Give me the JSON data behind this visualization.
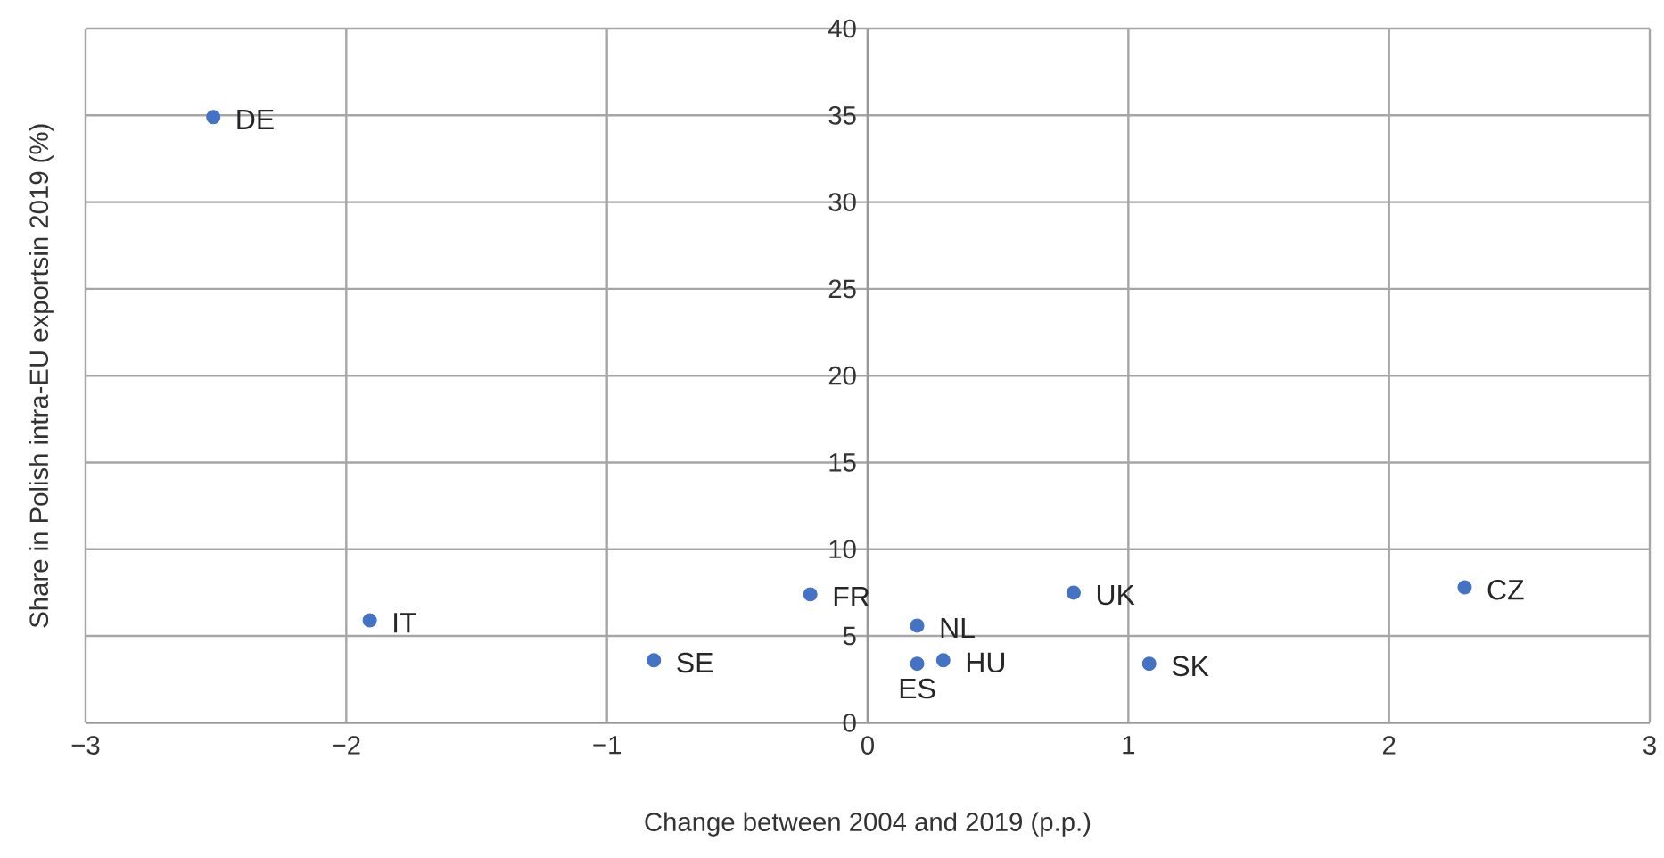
{
  "chart_data": {
    "type": "scatter",
    "xlabel": "Change between 2004 and 2019 (p.p.)",
    "ylabel": "Share in Polish intra-EU exportsin 2019 (%)",
    "x": [
      -2.51,
      -1.91,
      -0.82,
      -0.22,
      0.19,
      0.19,
      0.29,
      0.79,
      1.08,
      2.29
    ],
    "values": [
      34.9,
      5.9,
      3.6,
      7.4,
      5.6,
      3.4,
      3.6,
      7.5,
      3.4,
      7.8
    ],
    "color": "#4472c4",
    "xlim": [
      -3,
      3
    ],
    "xticks": [
      {
        "value": -3,
        "label": "−3"
      },
      {
        "value": -2,
        "label": "−2"
      },
      {
        "value": -1,
        "label": "−1"
      },
      0,
      1,
      2,
      3
    ],
    "ylim": [
      0,
      40
    ],
    "yticks": [
      0,
      5,
      10,
      15,
      20,
      25,
      30,
      35,
      40
    ],
    "grid": true,
    "annotations": [
      {
        "text": "DE",
        "x": -2.51,
        "y": 34.9
      },
      {
        "text": "IT",
        "x": -1.91,
        "y": 5.9
      },
      {
        "text": "SE",
        "x": -0.82,
        "y": 3.6
      },
      {
        "text": "FR",
        "x": -0.22,
        "y": 7.4
      },
      {
        "text": "NL",
        "x": 0.19,
        "y": 5.6
      },
      {
        "text": "ES",
        "x": 0.19,
        "y": 3.4
      },
      {
        "text": "HU",
        "x": 0.29,
        "y": 3.6
      },
      {
        "text": "UK",
        "x": 0.79,
        "y": 7.5
      },
      {
        "text": "SK",
        "x": 1.08,
        "y": 3.4
      },
      {
        "text": "CZ",
        "x": 2.29,
        "y": 7.8
      }
    ]
  }
}
